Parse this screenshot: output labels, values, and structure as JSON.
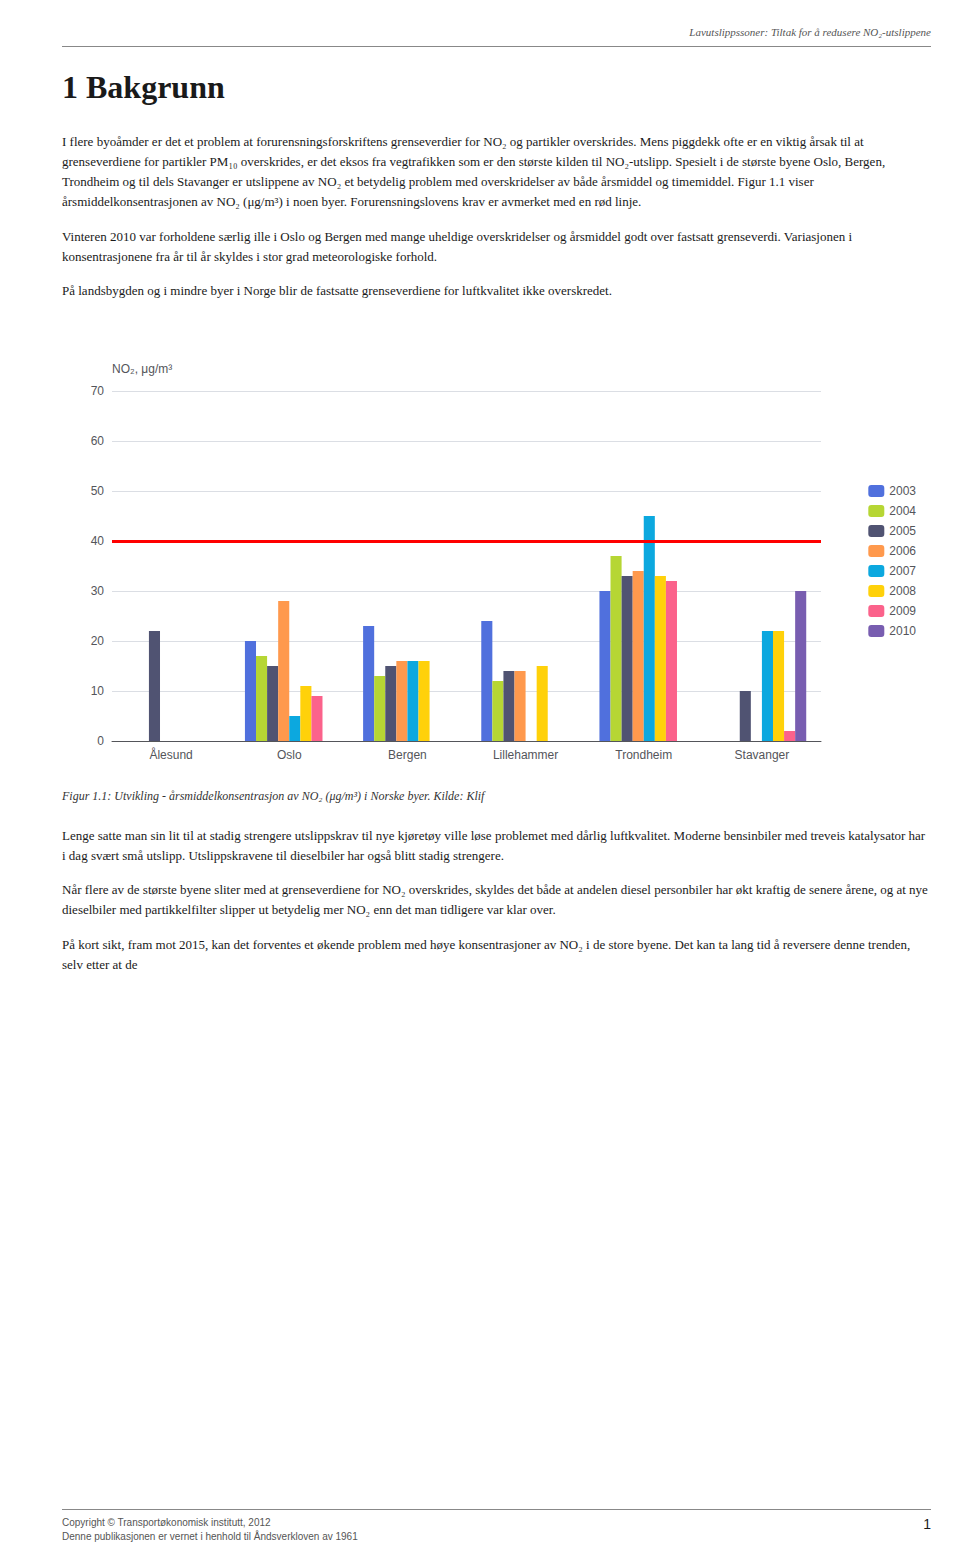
{
  "page_header": "Lavutslippssoner: Tiltak for å redusere NO₂-utslippene",
  "section_title": "1 Bakgrunn",
  "body_paragraphs": [
    "I flere byoåmder er det et problem at forurensningsforskriftens grenseverdier for NO₂ og partikler overskrides. Mens piggdekk ofte er en viktig årsak til at grenseverdiene for partikler PM₁₀ overskrides, er det eksos fra vegtrafikken som er den største kilden til NO₂-utslipp. Spesielt i de største byene Oslo, Bergen, Trondheim og til dels Stavanger er utslippene av NO₂ et betydelig problem med overskridelser av både årsmiddel og timemiddel. Figur 1.1 viser årsmiddelkonsentrasjonen av NO₂ (μg/m³) i noen byer. Forurensningslovens krav er avmerket med en rød linje.",
    "Vinteren 2010 var forholdene særlig ille i Oslo og Bergen med mange uheldige overskridelser og årsmiddel godt over fastsatt grenseverdi. Variasjonen i konsentrasjonene fra år til år skyldes i stor grad meteorologiske forhold.",
    "På landsbygden og i mindre byer i Norge blir de fastsatte grenseverdiene for luftkvalitet ikke overskredet."
  ],
  "chart_data": {
    "type": "bar",
    "ylabel": "NO₂, μg/m³",
    "categories": [
      "Ålesund",
      "Oslo",
      "Bergen",
      "Lillehammer",
      "Trondheim",
      "Stavanger"
    ],
    "series": [
      {
        "name": "2003",
        "values": [
          0,
          20,
          23,
          24,
          30,
          0
        ]
      },
      {
        "name": "2004",
        "values": [
          0,
          17,
          13,
          12,
          37,
          0
        ]
      },
      {
        "name": "2005",
        "values": [
          22,
          15,
          15,
          14,
          33,
          10
        ]
      },
      {
        "name": "2006",
        "values": [
          0,
          28,
          16,
          14,
          34,
          0
        ]
      },
      {
        "name": "2007",
        "values": [
          0,
          5,
          16,
          0,
          45,
          22
        ]
      },
      {
        "name": "2008",
        "values": [
          0,
          11,
          16,
          15,
          33,
          22
        ]
      },
      {
        "name": "2009",
        "values": [
          0,
          9,
          0,
          0,
          32,
          2
        ]
      },
      {
        "name": "2010",
        "values": [
          0,
          0,
          0,
          0,
          0,
          30
        ]
      }
    ],
    "reference_line": {
      "y": 40,
      "color": "red"
    },
    "ylim": [
      0,
      70
    ],
    "yticks": [
      0,
      10,
      20,
      30,
      40,
      50,
      60,
      70
    ],
    "grid": true,
    "legend": "right"
  },
  "figure_caption": "Figur 1.1: Utvikling - årsmiddelkonsentrasjon av NO₂ (μg/m³) i Norske byer. Kilde: Klif",
  "post_paragraphs": [
    "Lenge satte man sin lit til at stadig strengere utslippskrav til nye kjøretøy ville løse problemet med dårlig luftkvalitet. Moderne bensinbiler med treveis katalysator har i dag svært små utslipp. Utslippskravene til dieselbiler har også blitt stadig strengere.",
    "Når flere av de største byene sliter med at grenseverdiene for NO₂ overskrides, skyldes det både at andelen diesel personbiler har økt kraftig de senere årene, og at nye dieselbiler med partikkelfilter slipper ut betydelig mer NO₂ enn det man tidligere var klar over.",
    "På kort sikt, fram mot 2015, kan det forventes et økende problem med høye konsentrasjoner av NO₂ i de store byene. Det kan ta lang tid å reversere denne trenden, selv etter at de"
  ],
  "footer_left": "Copyright © Transportøkonomisk institutt, 2012\nDenne publikasjonen er vernet i henhold til Åndsverkloven av 1961",
  "footer_right": "1"
}
